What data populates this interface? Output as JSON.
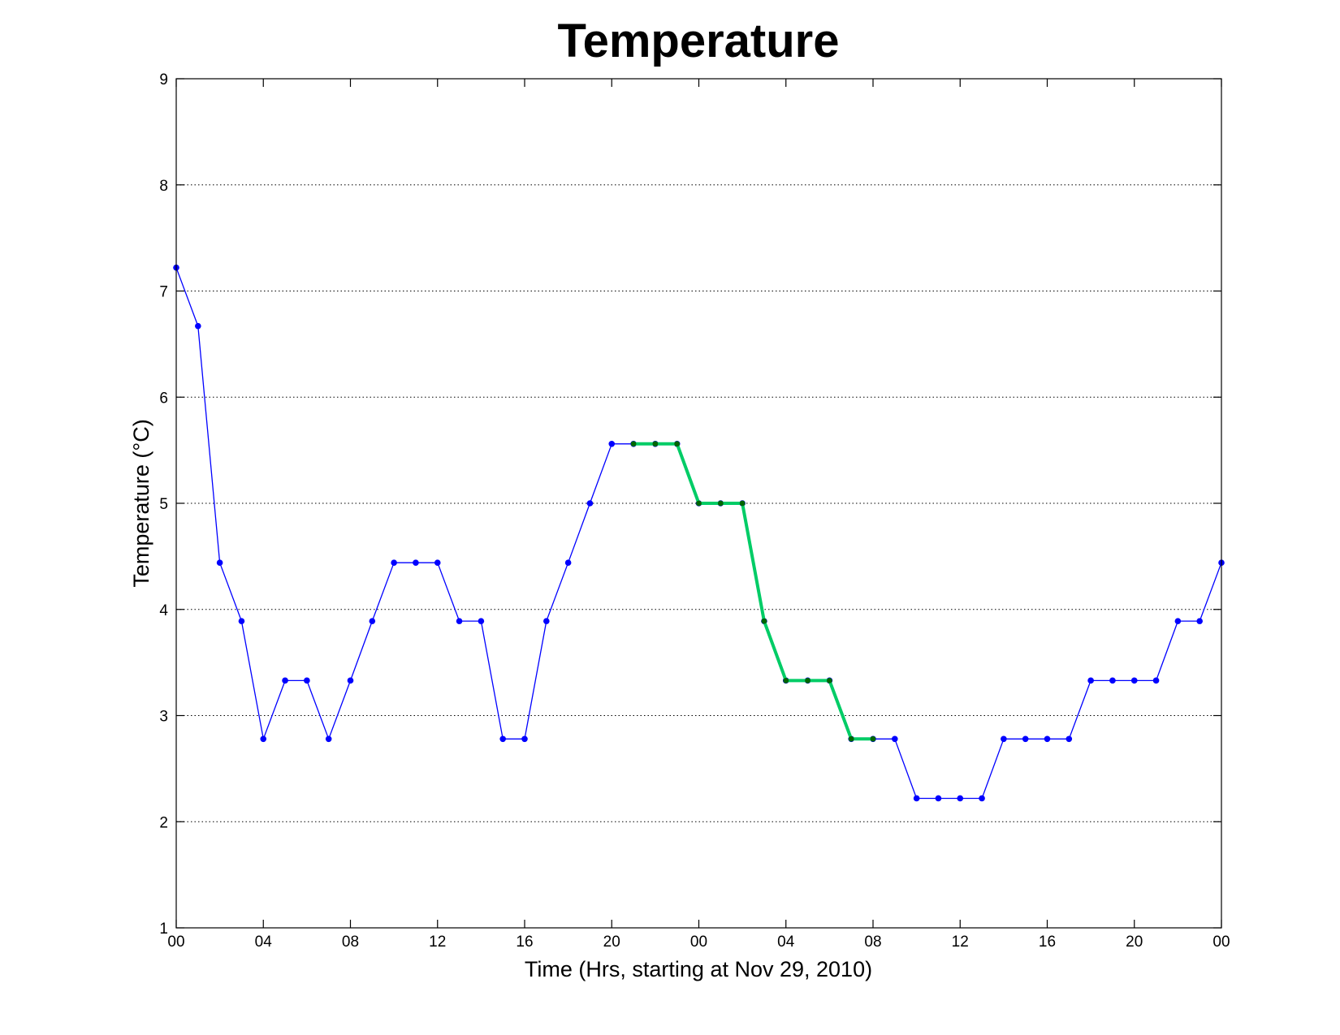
{
  "chart_data": {
    "type": "line",
    "title": "Temperature",
    "xlabel": "Time (Hrs, starting at Nov 29, 2010)",
    "ylabel": "Temperature (°C)",
    "ylim": [
      1,
      9
    ],
    "xlim": [
      0,
      48
    ],
    "grid": "y-dotted",
    "x_ticks": [
      0,
      4,
      8,
      12,
      16,
      20,
      24,
      28,
      32,
      36,
      40,
      44,
      48
    ],
    "x_tick_labels": [
      "00",
      "04",
      "08",
      "12",
      "16",
      "20",
      "00",
      "04",
      "08",
      "12",
      "16",
      "20",
      "00"
    ],
    "y_ticks": [
      1,
      2,
      3,
      4,
      5,
      6,
      7,
      8,
      9
    ],
    "y_tick_labels": [
      "1",
      "2",
      "3",
      "4",
      "5",
      "6",
      "7",
      "8",
      "9"
    ],
    "series": [
      {
        "color": "#0000ff",
        "x": [
          0,
          1,
          2,
          3,
          4,
          5,
          6,
          7,
          8,
          9,
          10,
          11,
          12,
          13,
          14,
          15,
          16,
          17,
          18,
          19,
          20,
          21,
          22,
          23,
          24,
          25,
          26,
          27,
          28,
          29,
          30,
          31,
          32,
          33,
          34,
          35,
          36,
          37,
          38,
          39,
          40,
          41,
          42,
          43,
          44,
          45,
          46,
          47,
          48
        ],
        "values": [
          7.22,
          6.67,
          4.44,
          3.89,
          2.78,
          3.33,
          3.33,
          2.78,
          3.33,
          3.89,
          4.44,
          4.44,
          4.44,
          3.89,
          3.89,
          2.78,
          2.78,
          3.89,
          4.44,
          5.0,
          5.56,
          5.56,
          5.56,
          5.56,
          5.0,
          5.0,
          5.0,
          3.89,
          3.33,
          3.33,
          3.33,
          2.78,
          2.78,
          2.78,
          2.22,
          2.22,
          2.22,
          2.22,
          2.78,
          2.78,
          2.78,
          2.78,
          3.33,
          3.33,
          3.33,
          3.33,
          3.89,
          3.89,
          4.44
        ]
      },
      {
        "color": "#00cc66",
        "marker_color": "#006600",
        "x": [
          21,
          22,
          23,
          24,
          25,
          26,
          27,
          28,
          29,
          30,
          31,
          32
        ],
        "values": [
          5.56,
          5.56,
          5.56,
          5.0,
          5.0,
          5.0,
          3.89,
          3.33,
          3.33,
          3.33,
          2.78,
          2.78
        ]
      }
    ]
  }
}
